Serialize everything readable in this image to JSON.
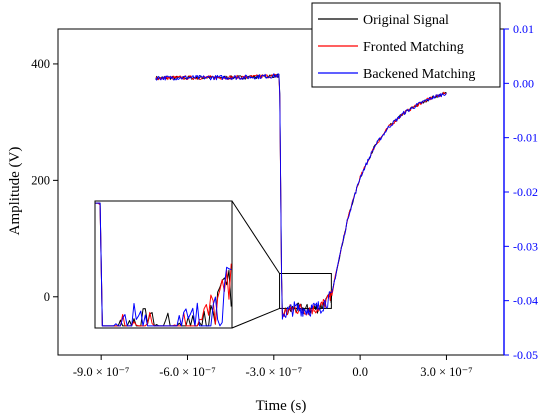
{
  "chart_data": {
    "type": "line",
    "title": "",
    "xlabel": "Time (s)",
    "ylabel": "Amplitude (V)",
    "xlim": [
      -1.05e-06,
      5e-07
    ],
    "ylim": [
      -100,
      460
    ],
    "y2lim": [
      -0.05,
      0.01
    ],
    "grid": false,
    "legend_position": "top-right",
    "x_ticks": [
      {
        "value": -9e-07,
        "label": "-9.0 × 10⁻⁷"
      },
      {
        "value": -6e-07,
        "label": "-6.0 × 10⁻⁷"
      },
      {
        "value": -3e-07,
        "label": "-3.0 × 10⁻⁷"
      },
      {
        "value": 0.0,
        "label": "0.0"
      },
      {
        "value": 3e-07,
        "label": "3.0 × 10⁻⁷"
      }
    ],
    "y_ticks": [
      {
        "value": 0,
        "label": "0"
      },
      {
        "value": 200,
        "label": "200"
      },
      {
        "value": 400,
        "label": "400"
      }
    ],
    "y2_ticks": [
      {
        "value": 0.01,
        "label": "0.01"
      },
      {
        "value": 0.0,
        "label": "0.00"
      },
      {
        "value": -0.01,
        "label": "-0.01"
      },
      {
        "value": -0.02,
        "label": "-0.02"
      },
      {
        "value": -0.03,
        "label": "-0.03"
      },
      {
        "value": -0.04,
        "label": "-0.04"
      },
      {
        "value": -0.05,
        "label": "-0.05"
      }
    ],
    "series": [
      {
        "name": "Original Signal",
        "color": "#000000",
        "points": [
          [
            -7.1e-07,
            376
          ],
          [
            -4e-07,
            377
          ],
          [
            -2.8e-07,
            380
          ],
          [
            -2.72e-07,
            -30
          ],
          [
            -2.3e-07,
            -20
          ],
          [
            -1.8e-07,
            -22
          ],
          [
            -1.4e-07,
            -18
          ],
          [
            -1e-07,
            0
          ],
          [
            -8e-08,
            50
          ],
          [
            -4e-08,
            140
          ],
          [
            0.0,
            205
          ],
          [
            5e-08,
            258
          ],
          [
            1e-07,
            292
          ],
          [
            1.5e-07,
            315
          ],
          [
            2e-07,
            330
          ],
          [
            2.5e-07,
            342
          ],
          [
            3e-07,
            350
          ]
        ]
      },
      {
        "name": "Fronted Matching",
        "color": "#ff0000",
        "points": [
          [
            -7.1e-07,
            376
          ],
          [
            -4e-07,
            377
          ],
          [
            -2.8e-07,
            380
          ],
          [
            -2.72e-07,
            -30
          ],
          [
            -2.3e-07,
            -20
          ],
          [
            -1.8e-07,
            -22
          ],
          [
            -1.4e-07,
            -18
          ],
          [
            -1e-07,
            0
          ],
          [
            -8e-08,
            50
          ],
          [
            -4e-08,
            140
          ],
          [
            0.0,
            205
          ],
          [
            5e-08,
            258
          ],
          [
            1e-07,
            292
          ],
          [
            1.5e-07,
            315
          ],
          [
            2e-07,
            330
          ],
          [
            2.5e-07,
            342
          ],
          [
            3e-07,
            350
          ]
        ]
      },
      {
        "name": "Backened Matching",
        "color": "#0000ff",
        "points": [
          [
            -7.1e-07,
            376
          ],
          [
            -4e-07,
            377
          ],
          [
            -2.8e-07,
            380
          ],
          [
            -2.72e-07,
            -30
          ],
          [
            -2.3e-07,
            -20
          ],
          [
            -1.8e-07,
            -22
          ],
          [
            -1.4e-07,
            -18
          ],
          [
            -1e-07,
            0
          ],
          [
            -8e-08,
            50
          ],
          [
            -4e-08,
            140
          ],
          [
            0.0,
            205
          ],
          [
            5e-08,
            258
          ],
          [
            1e-07,
            292
          ],
          [
            1.5e-07,
            315
          ],
          [
            2e-07,
            330
          ],
          [
            2.5e-07,
            342
          ],
          [
            3e-07,
            350
          ]
        ]
      }
    ],
    "zoom_region": {
      "x": [
        -2.8e-07,
        -1e-07
      ],
      "y": [
        -20,
        40
      ]
    }
  }
}
